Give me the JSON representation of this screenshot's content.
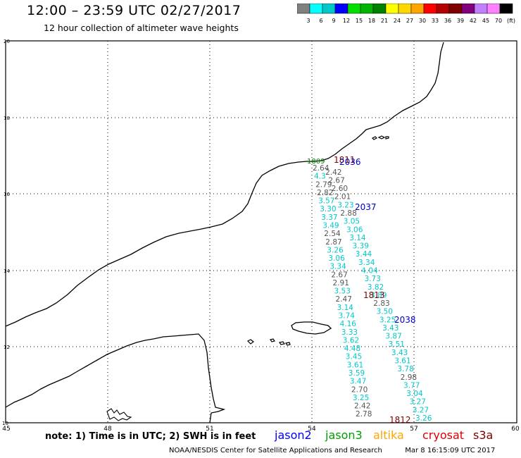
{
  "header": {
    "title": "12:00 – 23:59 UTC 02/27/2017",
    "subtitle": "12 hour collection of altimeter wave heights"
  },
  "scale": {
    "labels": [
      "3",
      "6",
      "9",
      "12",
      "15",
      "18",
      "21",
      "24",
      "27",
      "30",
      "33",
      "36",
      "39",
      "42",
      "45",
      "70",
      "(ft)"
    ],
    "colors": [
      "#808080",
      "#00ffff",
      "#00c8c8",
      "#0000ff",
      "#00e000",
      "#00b400",
      "#008000",
      "#ffff00",
      "#ffd700",
      "#ffa500",
      "#ff0000",
      "#b40000",
      "#7f0000",
      "#800080",
      "#c080ff",
      "#ff80ff",
      "#000000"
    ]
  },
  "axes": {
    "x_ticks": [
      "45",
      "48",
      "51",
      "54",
      "57",
      "60"
    ],
    "y_ticks": [
      "20",
      "18",
      "16",
      "14",
      "12",
      "10"
    ]
  },
  "track_labels": [
    {
      "text": "1809",
      "color": "#008000"
    },
    {
      "text": "1811",
      "color": "#7f0000"
    },
    {
      "text": "2036",
      "color": "#0000c0"
    },
    {
      "text": "2037",
      "color": "#0000c0"
    },
    {
      "text": "1813",
      "color": "#7f0000"
    },
    {
      "text": "2038",
      "color": "#0000c0"
    },
    {
      "text": "1812",
      "color": "#7f0000"
    }
  ],
  "wave_heights": [
    {
      "v": "2.64",
      "c": "#555555"
    },
    {
      "v": "2.42",
      "c": "#555555"
    },
    {
      "v": "4.3",
      "c": "#00c8c8"
    },
    {
      "v": "2.67",
      "c": "#555555"
    },
    {
      "v": "2.79",
      "c": "#555555"
    },
    {
      "v": "2.60",
      "c": "#555555"
    },
    {
      "v": "2.82",
      "c": "#555555"
    },
    {
      "v": "2.01",
      "c": "#555555"
    },
    {
      "v": "3.57",
      "c": "#00c8c8"
    },
    {
      "v": "3.23",
      "c": "#00c8c8"
    },
    {
      "v": "3.30",
      "c": "#00c8c8"
    },
    {
      "v": "2.88",
      "c": "#555555"
    },
    {
      "v": "3.37",
      "c": "#00c8c8"
    },
    {
      "v": "3.05",
      "c": "#00c8c8"
    },
    {
      "v": "3.49",
      "c": "#00c8c8"
    },
    {
      "v": "3.06",
      "c": "#00c8c8"
    },
    {
      "v": "2.54",
      "c": "#555555"
    },
    {
      "v": "3.14",
      "c": "#00c8c8"
    },
    {
      "v": "2.87",
      "c": "#555555"
    },
    {
      "v": "3.39",
      "c": "#00c8c8"
    },
    {
      "v": "3.26",
      "c": "#00c8c8"
    },
    {
      "v": "3.44",
      "c": "#00c8c8"
    },
    {
      "v": "3.06",
      "c": "#00c8c8"
    },
    {
      "v": "3.34",
      "c": "#00c8c8"
    },
    {
      "v": "3.34",
      "c": "#00c8c8"
    },
    {
      "v": "4.04",
      "c": "#00c8c8"
    },
    {
      "v": "2.67",
      "c": "#555555"
    },
    {
      "v": "3.73",
      "c": "#00c8c8"
    },
    {
      "v": "2.91",
      "c": "#555555"
    },
    {
      "v": "3.82",
      "c": "#00c8c8"
    },
    {
      "v": "3.53",
      "c": "#00c8c8"
    },
    {
      "v": "3.89",
      "c": "#00c8c8"
    },
    {
      "v": "2.47",
      "c": "#555555"
    },
    {
      "v": "2.83",
      "c": "#555555"
    },
    {
      "v": "3.14",
      "c": "#00c8c8"
    },
    {
      "v": "3.50",
      "c": "#00c8c8"
    },
    {
      "v": "3.74",
      "c": "#00c8c8"
    },
    {
      "v": "3.25",
      "c": "#00c8c8"
    },
    {
      "v": "4.16",
      "c": "#00c8c8"
    },
    {
      "v": "3.43",
      "c": "#00c8c8"
    },
    {
      "v": "3.33",
      "c": "#00c8c8"
    },
    {
      "v": "3.87",
      "c": "#00c8c8"
    },
    {
      "v": "3.62",
      "c": "#00c8c8"
    },
    {
      "v": "3.51",
      "c": "#00c8c8"
    },
    {
      "v": "4.48",
      "c": "#00c8c8"
    },
    {
      "v": "3.43",
      "c": "#00c8c8"
    },
    {
      "v": "3.45",
      "c": "#00c8c8"
    },
    {
      "v": "3.61",
      "c": "#00c8c8"
    },
    {
      "v": "3.61",
      "c": "#00c8c8"
    },
    {
      "v": "3.78",
      "c": "#00c8c8"
    },
    {
      "v": "3.59",
      "c": "#00c8c8"
    },
    {
      "v": "2.98",
      "c": "#555555"
    },
    {
      "v": "3.47",
      "c": "#00c8c8"
    },
    {
      "v": "3.77",
      "c": "#00c8c8"
    },
    {
      "v": "2.70",
      "c": "#555555"
    },
    {
      "v": "3.04",
      "c": "#00c8c8"
    },
    {
      "v": "3.25",
      "c": "#00c8c8"
    },
    {
      "v": "3.27",
      "c": "#00c8c8"
    },
    {
      "v": "2.42",
      "c": "#555555"
    },
    {
      "v": "3.27",
      "c": "#00c8c8"
    },
    {
      "v": "2.78",
      "c": "#555555"
    },
    {
      "v": "3.26",
      "c": "#00c8c8"
    }
  ],
  "note": "note: 1) Time is in UTC; 2) SWH is in feet",
  "legend": [
    {
      "name": "jason2",
      "color": "#0000ff"
    },
    {
      "name": "jason3",
      "color": "#00a000"
    },
    {
      "name": "altika",
      "color": "#ffa500"
    },
    {
      "name": "cryosat",
      "color": "#e00000"
    },
    {
      "name": "s3a",
      "color": "#800000"
    }
  ],
  "credit": "NOAA/NESDIS Center for Satellite Applications and Research",
  "timestamp": "Mar  8 16:15:09 UTC 2017"
}
